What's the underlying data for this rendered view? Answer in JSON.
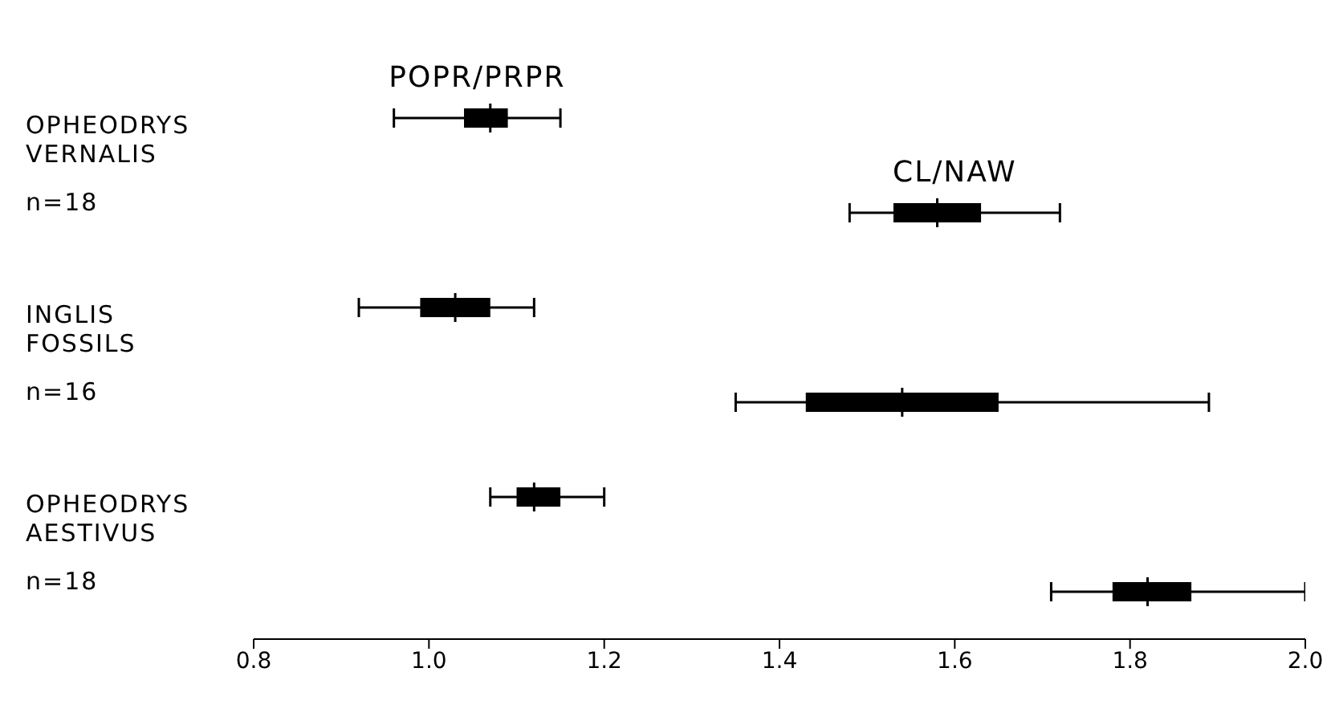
{
  "chart_data": {
    "type": "box",
    "orientation": "horizontal",
    "categories": [
      "OPHEODRYS\nVERNALIS\nn=18",
      "INGLIS\nFOSSILS\nn=16",
      "OPHEODRYS\nAESTIVUS\nn=18"
    ],
    "series": [
      {
        "name": "POPR/PRPR",
        "color": "#000000",
        "boxes": [
          {
            "low": 0.96,
            "q1": 1.04,
            "median": 1.07,
            "q3": 1.09,
            "high": 1.15
          },
          {
            "low": 0.92,
            "q1": 0.99,
            "median": 1.03,
            "q3": 1.07,
            "high": 1.12
          },
          {
            "low": 1.07,
            "q1": 1.1,
            "median": 1.12,
            "q3": 1.15,
            "high": 1.2
          }
        ]
      },
      {
        "name": "CL/NAW",
        "color": "#000000",
        "boxes": [
          {
            "low": 1.48,
            "q1": 1.53,
            "median": 1.58,
            "q3": 1.63,
            "high": 1.72
          },
          {
            "low": 1.35,
            "q1": 1.43,
            "median": 1.54,
            "q3": 1.65,
            "high": 1.89
          },
          {
            "low": 1.71,
            "q1": 1.78,
            "median": 1.82,
            "q3": 1.87,
            "high": 2.0
          }
        ]
      }
    ],
    "xlim": [
      0.8,
      2.0
    ],
    "xticks": [
      {
        "value": 0.8,
        "label": "0.8"
      },
      {
        "value": 1.0,
        "label": "1.0"
      },
      {
        "value": 1.2,
        "label": "1.2"
      },
      {
        "value": 1.4,
        "label": "1.4"
      },
      {
        "value": 1.6,
        "label": "1.6"
      },
      {
        "value": 1.8,
        "label": "1.8"
      },
      {
        "value": 2.0,
        "label": "2.0"
      }
    ]
  }
}
